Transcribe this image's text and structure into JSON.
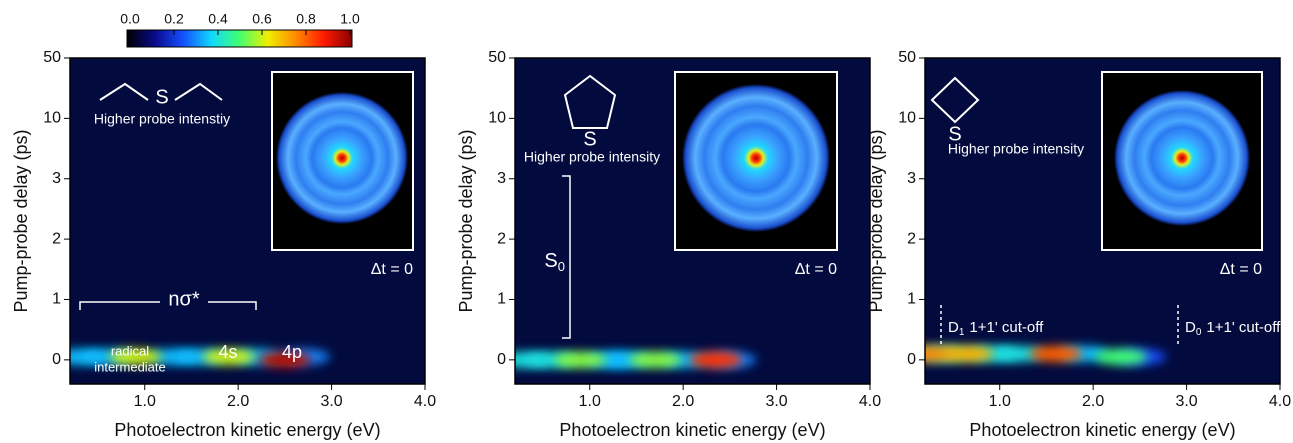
{
  "colorbar": {
    "lim": [
      0,
      1
    ],
    "ticks": [
      {
        "value": 0,
        "label": "0.0"
      },
      {
        "value": 0.2,
        "label": "0.2"
      },
      {
        "value": 0.4,
        "label": "0.4"
      },
      {
        "value": 0.6,
        "label": "0.6"
      },
      {
        "value": 0.8,
        "label": "0.8"
      },
      {
        "value": 1,
        "label": "1.0"
      }
    ],
    "colormap": [
      "#000000",
      "#0a0a8c",
      "#1450ff",
      "#10d8ff",
      "#40ff70",
      "#f0f000",
      "#ff8a00",
      "#ff1a00",
      "#8a0000"
    ]
  },
  "chart_data": [
    {
      "type": "heatmap",
      "xlabel": "Photoelectron kinetic energy (eV)",
      "ylabel": "Pump-probe delay (ps)",
      "xlim": [
        0.2,
        4.0
      ],
      "xticks": [
        {
          "value": 1,
          "label": "1.0"
        },
        {
          "value": 2,
          "label": "2.0"
        },
        {
          "value": 3,
          "label": "3.0"
        },
        {
          "value": 4,
          "label": "4.0"
        }
      ],
      "ylim": [
        -0.4,
        50
      ],
      "yticks": [
        0,
        1,
        2,
        3,
        10,
        50
      ],
      "x": [
        0.3,
        0.6,
        1.3,
        1.6,
        2.2,
        2.7,
        0.9,
        1.9,
        2.5
      ],
      "y": [
        0.05,
        0.05,
        0.05,
        0.05,
        0.05,
        0.05,
        0.05,
        0.05,
        0.0
      ],
      "values": [
        0.35,
        0.35,
        0.35,
        0.35,
        0.35,
        0.3,
        0.6,
        0.6,
        0.95
      ],
      "molecule_atom": "S",
      "probe_note": "Higher probe intenstiy",
      "inset_label": "Δt = 0",
      "annotations": {
        "band": "nσ*",
        "radical": "radical",
        "intermediate": "intermediate",
        "s": "4s",
        "p": "4p"
      }
    },
    {
      "type": "heatmap",
      "xlabel": "Photoelectron kinetic energy (eV)",
      "ylabel": "Pump-probe delay (ps)",
      "xlim": [
        0.2,
        4.0
      ],
      "xticks": [
        {
          "value": 1,
          "label": "1.0"
        },
        {
          "value": 2,
          "label": "2.0"
        },
        {
          "value": 3,
          "label": "3.0"
        },
        {
          "value": 4,
          "label": "4.0"
        }
      ],
      "ylim": [
        -0.4,
        50
      ],
      "yticks": [
        0,
        1,
        2,
        3,
        10,
        50
      ],
      "x": [
        0.3,
        0.6,
        1.2,
        1.4,
        2.0,
        2.5,
        0.9,
        1.7,
        2.35
      ],
      "y": [
        0.0,
        0.0,
        0.0,
        0.0,
        0.0,
        0.0,
        0.0,
        0.0,
        0.0
      ],
      "values": [
        0.4,
        0.4,
        0.35,
        0.35,
        0.35,
        0.3,
        0.55,
        0.55,
        0.85
      ],
      "molecule_atom": "S",
      "probe_note": "Higher probe intensity",
      "inset_label": "Δt = 0",
      "annotations": {
        "state": "S",
        "state_sub": "0"
      }
    },
    {
      "type": "heatmap",
      "xlabel": "Photoelectron kinetic energy (eV)",
      "ylabel": "Pump-probe delay (ps)",
      "xlim": [
        0.2,
        4.0
      ],
      "xticks": [
        {
          "value": 1,
          "label": "1.0"
        },
        {
          "value": 2,
          "label": "2.0"
        },
        {
          "value": 3,
          "label": "3.0"
        },
        {
          "value": 4,
          "label": "4.0"
        }
      ],
      "ylim": [
        -0.4,
        50
      ],
      "yticks": [
        0,
        1,
        2,
        3,
        10,
        50
      ],
      "x": [
        0.4,
        0.9,
        1.2,
        1.9,
        2.5,
        0.25,
        0.65,
        1.6,
        2.3
      ],
      "y": [
        0.1,
        0.1,
        0.1,
        0.1,
        0.05,
        0.1,
        0.1,
        0.1,
        0.05
      ],
      "values": [
        0.4,
        0.4,
        0.4,
        0.35,
        0.25,
        0.75,
        0.7,
        0.8,
        0.5
      ],
      "molecule_atom": "S",
      "probe_note": "Higher probe intensity",
      "inset_label": "Δt = 0",
      "annotations": {
        "d1": "D",
        "d1_sub": "1",
        "d1_text": "1+1' cut-off",
        "d0": "D",
        "d0_sub": "0",
        "d0_text": "1+1' cut-off"
      }
    }
  ]
}
